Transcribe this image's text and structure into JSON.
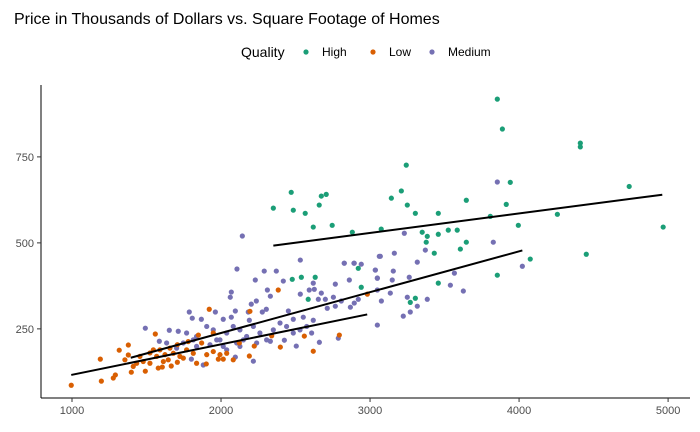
{
  "chart_data": {
    "type": "scatter",
    "title": "Price in Thousands of Dollars vs. Square Footage of Homes",
    "xlabel": "",
    "ylabel": "",
    "xlim": [
      792,
      5147
    ],
    "ylim": [
      49,
      959
    ],
    "xticks": [
      1000,
      2000,
      3000,
      4000,
      5000
    ],
    "yticks": [
      250,
      500,
      750
    ],
    "grid": false,
    "legend": {
      "title": "Quality",
      "placement": "top"
    },
    "series": [
      {
        "name": "High",
        "color": "#1b9e77",
        "points": [
          [
            3854,
            918
          ],
          [
            3888,
            831
          ],
          [
            4411,
            790
          ],
          [
            4411,
            779
          ],
          [
            3243,
            726
          ],
          [
            2471,
            647
          ],
          [
            2673,
            636
          ],
          [
            2706,
            641
          ],
          [
            2351,
            601
          ],
          [
            2485,
            595
          ],
          [
            2565,
            586
          ],
          [
            2659,
            610
          ],
          [
            2619,
            546
          ],
          [
            2746,
            551
          ],
          [
            2881,
            531
          ],
          [
            3075,
            540
          ],
          [
            3143,
            630
          ],
          [
            3210,
            651
          ],
          [
            3250,
            610
          ],
          [
            3304,
            586
          ],
          [
            3458,
            586
          ],
          [
            3646,
            624
          ],
          [
            3941,
            676
          ],
          [
            3914,
            612
          ],
          [
            3807,
            577
          ],
          [
            3995,
            551
          ],
          [
            4257,
            583
          ],
          [
            4739,
            664
          ],
          [
            4967,
            546
          ],
          [
            3350,
            531
          ],
          [
            3384,
            519
          ],
          [
            3458,
            525
          ],
          [
            3525,
            537
          ],
          [
            3585,
            537
          ],
          [
            3377,
            502
          ],
          [
            3431,
            470
          ],
          [
            3646,
            502
          ],
          [
            3606,
            482
          ],
          [
            4075,
            453
          ],
          [
            4451,
            467
          ],
          [
            3854,
            406
          ],
          [
            3458,
            383
          ],
          [
            2921,
            426
          ],
          [
            2941,
            371
          ],
          [
            2478,
            394
          ],
          [
            2539,
            400
          ],
          [
            2632,
            400
          ],
          [
            2585,
            336
          ],
          [
            3270,
            327
          ],
          [
            3304,
            339
          ]
        ],
        "fit": [
          [
            2351,
            492
          ],
          [
            4961,
            640
          ]
        ]
      },
      {
        "name": "Low",
        "color": "#d95f02",
        "points": [
          [
            995,
            86
          ],
          [
            1197,
            98
          ],
          [
            1277,
            107
          ],
          [
            1291,
            116
          ],
          [
            1190,
            162
          ],
          [
            1317,
            188
          ],
          [
            1378,
            203
          ],
          [
            1378,
            174
          ],
          [
            1398,
            124
          ],
          [
            1492,
            127
          ],
          [
            1559,
            235
          ],
          [
            1579,
            136
          ],
          [
            1606,
            139
          ],
          [
            1666,
            142
          ],
          [
            1707,
            153
          ],
          [
            1747,
            165
          ],
          [
            1848,
            232
          ],
          [
            1921,
            307
          ],
          [
            1948,
            238
          ],
          [
            1901,
            148
          ],
          [
            1982,
            162
          ],
          [
            2015,
            162
          ],
          [
            2123,
            209
          ],
          [
            2190,
            171
          ],
          [
            2223,
            200
          ],
          [
            2384,
            363
          ],
          [
            2398,
            197
          ],
          [
            2559,
            229
          ],
          [
            2619,
            185
          ],
          [
            2794,
            232
          ],
          [
            2982,
            351
          ],
          [
            1707,
            204
          ],
          [
            1456,
            170
          ],
          [
            1523,
            180
          ],
          [
            1546,
            189
          ],
          [
            1568,
            170
          ],
          [
            1590,
            189
          ],
          [
            1624,
            175
          ],
          [
            1646,
            160
          ],
          [
            1657,
            194
          ],
          [
            1680,
            179
          ],
          [
            1724,
            170
          ],
          [
            1769,
            189
          ],
          [
            1814,
            179
          ],
          [
            1434,
            150
          ],
          [
            1478,
            155
          ],
          [
            1411,
            141
          ],
          [
            1523,
            150
          ],
          [
            1613,
            155
          ],
          [
            1904,
            175
          ],
          [
            1948,
            184
          ],
          [
            1993,
            175
          ],
          [
            2038,
            179
          ],
          [
            2082,
            160
          ],
          [
            1780,
            213
          ],
          [
            1870,
            209
          ],
          [
            1836,
            150
          ],
          [
            2194,
            301
          ],
          [
            2340,
            230
          ],
          [
            1355,
            160
          ]
        ],
        "fit": [
          [
            995,
            116
          ],
          [
            2981,
            292
          ]
        ]
      },
      {
        "name": "Medium",
        "color": "#7570b3",
        "points": [
          [
            2143,
            520
          ],
          [
            2107,
            424
          ],
          [
            2290,
            418
          ],
          [
            2371,
            418
          ],
          [
            2532,
            450
          ],
          [
            2827,
            441
          ],
          [
            2894,
            441
          ],
          [
            2941,
            438
          ],
          [
            3062,
            461
          ],
          [
            3036,
            421
          ],
          [
            2230,
            392
          ],
          [
            2418,
            389
          ],
          [
            2069,
            357
          ],
          [
            2062,
            342
          ],
          [
            2311,
            363
          ],
          [
            2331,
            345
          ],
          [
            2532,
            351
          ],
          [
            2592,
            363
          ],
          [
            2619,
            383
          ],
          [
            2626,
            365
          ],
          [
            2673,
            354
          ],
          [
            2767,
            380
          ],
          [
            2861,
            392
          ],
          [
            3049,
            398
          ],
          [
            3049,
            363
          ],
          [
            1492,
            252
          ],
          [
            1653,
            246
          ],
          [
            1787,
            299
          ],
          [
            1807,
            281
          ],
          [
            1868,
            278
          ],
          [
            1962,
            299
          ],
          [
            2096,
            302
          ],
          [
            2203,
            322
          ],
          [
            2237,
            331
          ],
          [
            2304,
            307
          ],
          [
            2277,
            299
          ],
          [
            2015,
            278
          ],
          [
            2069,
            284
          ],
          [
            2183,
            299
          ],
          [
            2190,
            275
          ],
          [
            2452,
            302
          ],
          [
            2485,
            278
          ],
          [
            2552,
            284
          ],
          [
            2619,
            275
          ],
          [
            2653,
            336
          ],
          [
            2700,
            336
          ],
          [
            2754,
            342
          ],
          [
            2713,
            310
          ],
          [
            2767,
            316
          ],
          [
            2807,
            331
          ],
          [
            2868,
            313
          ],
          [
            2894,
            325
          ],
          [
            2921,
            336
          ],
          [
            3049,
            261
          ],
          [
            2787,
            223
          ],
          [
            2660,
            211
          ],
          [
            2505,
            200
          ],
          [
            2425,
            217
          ],
          [
            2331,
            214
          ],
          [
            2217,
            156
          ],
          [
            2096,
            168
          ],
          [
            1881,
            145
          ],
          [
            1801,
            162
          ],
          [
            1586,
            214
          ],
          [
            1713,
            243
          ],
          [
            1769,
            238
          ],
          [
            1836,
            228
          ],
          [
            1904,
            257
          ],
          [
            1948,
            247
          ],
          [
            1993,
            218
          ],
          [
            2038,
            238
          ],
          [
            2082,
            257
          ],
          [
            2127,
            247
          ],
          [
            2172,
            228
          ],
          [
            2217,
            257
          ],
          [
            2261,
            238
          ],
          [
            2306,
            218
          ],
          [
            2351,
            247
          ],
          [
            2396,
            267
          ],
          [
            2440,
            257
          ],
          [
            2485,
            238
          ],
          [
            2530,
            247
          ],
          [
            2575,
            257
          ],
          [
            2608,
            238
          ],
          [
            1747,
            209
          ],
          [
            1836,
            199
          ],
          [
            1926,
            204
          ],
          [
            2015,
            199
          ],
          [
            2105,
            209
          ],
          [
            2150,
            218
          ],
          [
            1635,
            209
          ],
          [
            1702,
            194
          ],
          [
            1814,
            218
          ],
          [
            1971,
            218
          ],
          [
            2038,
            189
          ],
          [
            2127,
            199
          ],
          [
            2239,
            209
          ],
          [
            3854,
            677
          ],
          [
            3827,
            502
          ],
          [
            3230,
            528
          ],
          [
            3069,
            461
          ],
          [
            3163,
            470
          ],
          [
            3371,
            479
          ],
          [
            3317,
            444
          ],
          [
            3035,
            421
          ],
          [
            3156,
            418
          ],
          [
            3049,
            397
          ],
          [
            3263,
            400
          ],
          [
            3149,
            392
          ],
          [
            3566,
            412
          ],
          [
            4022,
            432
          ],
          [
            3539,
            377
          ],
          [
            3626,
            360
          ],
          [
            3136,
            354
          ],
          [
            3250,
            342
          ],
          [
            3384,
            336
          ],
          [
            3317,
            316
          ],
          [
            3076,
            331
          ],
          [
            3223,
            287
          ],
          [
            3270,
            299
          ],
          [
            2892,
            441
          ],
          [
            2827,
            441
          ]
        ],
        "fit": [
          [
            1394,
            166
          ],
          [
            4022,
            478
          ]
        ]
      }
    ]
  }
}
